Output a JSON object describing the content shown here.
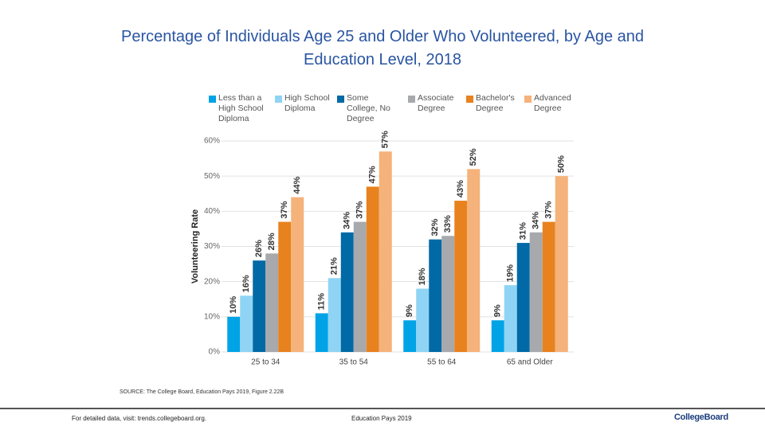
{
  "chart_data": {
    "type": "bar",
    "title": "Percentage of Individuals Age 25 and Older Who Volunteered, by Age and Education Level, 2018",
    "y_label": "Volunteering Rate",
    "categories": [
      "25 to 34",
      "35 to 54",
      "55 to 64",
      "65 and Older"
    ],
    "series": [
      {
        "name": "Less than a High School Diploma",
        "color": "#00a3e6",
        "values": [
          10,
          11,
          9,
          9
        ],
        "value_labels": [
          "10%",
          "11%",
          "9%",
          "9%"
        ]
      },
      {
        "name": "High School Diploma",
        "color": "#8fd4f4",
        "values": [
          16,
          21,
          18,
          19
        ],
        "value_labels": [
          "16%",
          "21%",
          "18%",
          "19%"
        ]
      },
      {
        "name": "Some College, No Degree",
        "color": "#0069a6",
        "values": [
          26,
          34,
          32,
          31
        ],
        "value_labels": [
          "26%",
          "34%",
          "32%",
          "31%"
        ]
      },
      {
        "name": "Associate Degree",
        "color": "#a7a9ac",
        "values": [
          28,
          37,
          33,
          34
        ],
        "value_labels": [
          "28%",
          "37%",
          "33%",
          "34%"
        ]
      },
      {
        "name": "Bachelor's Degree",
        "color": "#e8821e",
        "values": [
          37,
          47,
          43,
          37
        ],
        "value_labels": [
          "37%",
          "47%",
          "43%",
          "37%"
        ]
      },
      {
        "name": "Advanced Degree",
        "color": "#f5b27a",
        "values": [
          44,
          57,
          52,
          50
        ],
        "value_labels": [
          "44%",
          "57%",
          "52%",
          "50%"
        ]
      }
    ],
    "ylim": [
      0,
      60
    ],
    "yticks": [
      {
        "value": 0,
        "label": "0%"
      },
      {
        "value": 10,
        "label": "10%"
      },
      {
        "value": 20,
        "label": "20%"
      },
      {
        "value": 30,
        "label": "30%"
      },
      {
        "value": 40,
        "label": "40%"
      },
      {
        "value": 50,
        "label": "50%"
      },
      {
        "value": 60,
        "label": "60%"
      }
    ],
    "grid": true
  },
  "source": "SOURCE: The College Board, Education Pays 2019, Figure 2.22B",
  "footer": {
    "left": "For detailed data, visit: trends.collegeboard.org.",
    "center": "Education Pays 2019",
    "logo": "CollegeBoard"
  }
}
